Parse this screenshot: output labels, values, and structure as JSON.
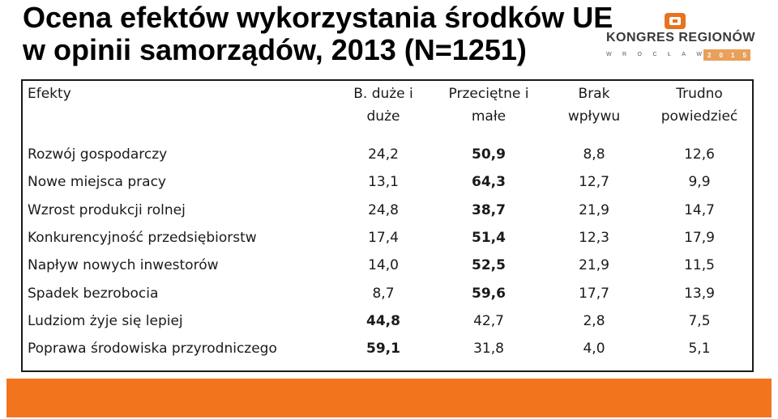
{
  "title": {
    "line1": "Ocena efektów wykorzystania środków UE",
    "line2": "w opinii samorządów, 2013 (N=1251)"
  },
  "logo": {
    "name": "KONGRES REGIONÓW",
    "city_letters": [
      "W",
      "R",
      "O",
      "C",
      "Ł",
      "A",
      "W"
    ],
    "year_digits": [
      "2",
      "0",
      "1",
      "5"
    ],
    "colors": {
      "mark": "#e8731e",
      "year_bg": "#e8a05a"
    }
  },
  "table": {
    "headers": [
      {
        "line1": "Efekty",
        "line2": ""
      },
      {
        "line1": "B. duże i",
        "line2": "duże"
      },
      {
        "line1": "Przeciętne i",
        "line2": "małe"
      },
      {
        "line1": "Brak",
        "line2": "wpływu"
      },
      {
        "line1": "Trudno",
        "line2": "powiedzieć"
      }
    ],
    "rows": [
      {
        "label": "Rozwój gospodarczy",
        "values": [
          "24,2",
          "50,9",
          "8,8",
          "12,6"
        ],
        "bold": [
          false,
          true,
          false,
          false
        ]
      },
      {
        "label": "Nowe miejsca pracy",
        "values": [
          "13,1",
          "64,3",
          "12,7",
          "9,9"
        ],
        "bold": [
          false,
          true,
          false,
          false
        ]
      },
      {
        "label": "Wzrost produkcji rolnej",
        "values": [
          "24,8",
          "38,7",
          "21,9",
          "14,7"
        ],
        "bold": [
          false,
          true,
          false,
          false
        ]
      },
      {
        "label": "Konkurencyjność przedsiębiorstw",
        "values": [
          "17,4",
          "51,4",
          "12,3",
          "17,9"
        ],
        "bold": [
          false,
          true,
          false,
          false
        ]
      },
      {
        "label": "Napływ nowych inwestorów",
        "values": [
          "14,0",
          "52,5",
          "21,9",
          "11,5"
        ],
        "bold": [
          false,
          true,
          false,
          false
        ]
      },
      {
        "label": "Spadek bezrobocia",
        "values": [
          "8,7",
          "59,6",
          "17,7",
          "13,9"
        ],
        "bold": [
          false,
          true,
          false,
          false
        ]
      },
      {
        "label": "Ludziom żyje się lepiej",
        "values": [
          "44,8",
          "42,7",
          "2,8",
          "7,5"
        ],
        "bold": [
          true,
          false,
          false,
          false
        ]
      },
      {
        "label": "Poprawa środowiska przyrodniczego",
        "values": [
          "59,1",
          "31,8",
          "4,0",
          "5,1"
        ],
        "bold": [
          true,
          false,
          false,
          false
        ]
      }
    ]
  },
  "footer": {
    "color": "#f2751e"
  }
}
